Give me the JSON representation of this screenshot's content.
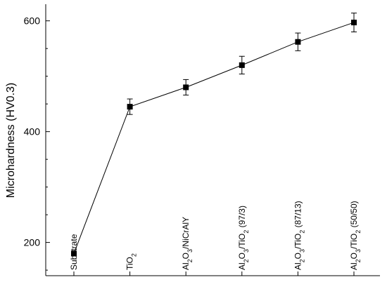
{
  "chart_data": {
    "type": "line",
    "title": "",
    "xlabel": "",
    "ylabel": "Microhardness (HV0.3)",
    "ylim": [
      140,
      630
    ],
    "yticks": [
      200,
      400,
      600
    ],
    "categories": [
      {
        "main": "Substrate"
      },
      {
        "main": "TiO",
        "sub": "2"
      },
      {
        "parts": [
          [
            "Al",
            ""
          ],
          [
            "2",
            "sub"
          ],
          [
            "O",
            ""
          ],
          [
            "3",
            "sub"
          ],
          [
            "/NiCrAlY",
            ""
          ]
        ]
      },
      {
        "parts": [
          [
            "Al",
            ""
          ],
          [
            "2",
            "sub"
          ],
          [
            "O",
            ""
          ],
          [
            "3",
            "sub"
          ],
          [
            "/TiO",
            ""
          ],
          [
            "2",
            "sub"
          ],
          [
            " (97/3)",
            ""
          ]
        ]
      },
      {
        "parts": [
          [
            "Al",
            ""
          ],
          [
            "2",
            "sub"
          ],
          [
            "O",
            ""
          ],
          [
            "3",
            "sub"
          ],
          [
            "/TiO",
            ""
          ],
          [
            "2",
            "sub"
          ],
          [
            " (87/13)",
            ""
          ]
        ]
      },
      {
        "parts": [
          [
            "Al",
            ""
          ],
          [
            "2",
            "sub"
          ],
          [
            "O",
            ""
          ],
          [
            "3",
            "sub"
          ],
          [
            "/TiO",
            ""
          ],
          [
            "2",
            "sub"
          ],
          [
            " (50/50)",
            ""
          ]
        ]
      }
    ],
    "series": [
      {
        "values": [
          180,
          445,
          480,
          520,
          562,
          597
        ],
        "errors": [
          0,
          14,
          14,
          16,
          16,
          17
        ]
      }
    ],
    "grid": false,
    "legend": "none"
  }
}
